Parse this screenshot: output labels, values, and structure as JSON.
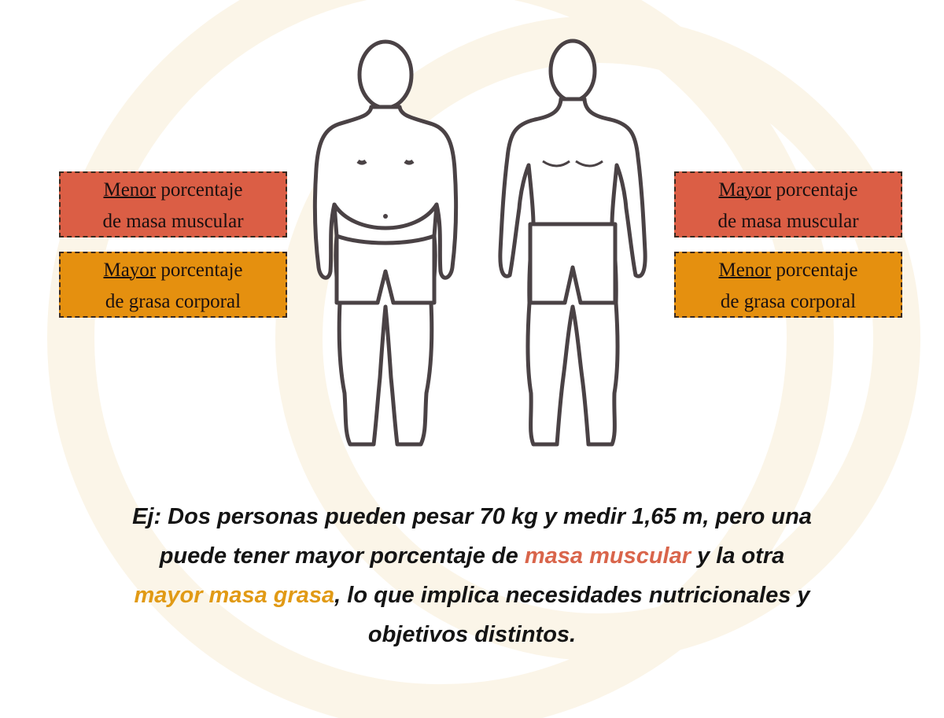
{
  "left_labels": [
    {
      "emphasis": "Menor",
      "rest": "porcentaje",
      "line2": "de masa muscular"
    },
    {
      "emphasis": "Mayor",
      "rest": "porcentaje",
      "line2": "de grasa corporal"
    }
  ],
  "right_labels": [
    {
      "emphasis": "Mayor",
      "rest": "porcentaje",
      "line2": "de masa muscular"
    },
    {
      "emphasis": "Menor",
      "rest": "porcentaje",
      "line2": "de grasa corporal"
    }
  ],
  "caption": {
    "parts": [
      "Ej: Dos personas pueden pesar 70 kg y medir 1,65 m, pero una",
      "puede tener mayor porcentaje de ",
      "masa muscular",
      " y la otra",
      "mayor masa grasa",
      ", lo que implica necesidades nutricionales y",
      "objetivos distintos."
    ]
  }
}
